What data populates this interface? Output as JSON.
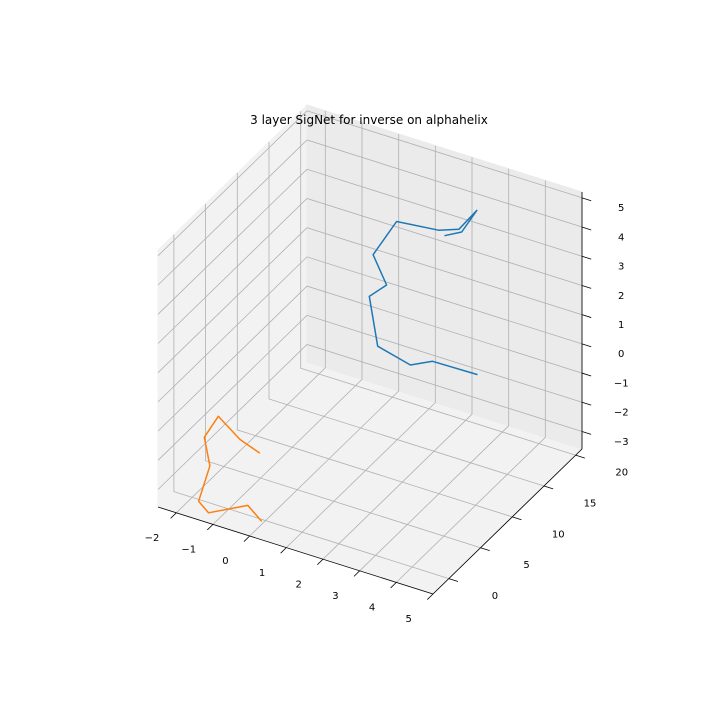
{
  "chart_data": {
    "type": "line",
    "projection": "3d",
    "title": "3 layer SigNet for inverse on alphahelix",
    "xlabel": "",
    "ylabel": "",
    "zlabel": "",
    "grid": true,
    "x_ticks": [
      "−2",
      "−1",
      "0",
      "1",
      "2",
      "3",
      "4",
      "5"
    ],
    "y_ticks": [
      "0",
      "5",
      "10",
      "15",
      "20"
    ],
    "z_ticks": [
      "−3",
      "−2",
      "−1",
      "0",
      "1",
      "2",
      "3",
      "4",
      "5"
    ],
    "xlim": [
      -2.5,
      5.0
    ],
    "ylim": [
      -2.5,
      21.0
    ],
    "zlim": [
      -3.6,
      5.2
    ],
    "series": [
      {
        "color": "#1f77b4",
        "points": [
          [
            2.6,
            13.2,
            4.4
          ],
          [
            3.0,
            13.6,
            4.6
          ],
          [
            3.1,
            15.4,
            5.0
          ],
          [
            2.7,
            14.9,
            4.3
          ],
          [
            2.3,
            14.0,
            4.3
          ],
          [
            1.5,
            12.0,
            4.7
          ],
          [
            1.1,
            10.6,
            3.7
          ],
          [
            1.4,
            11.0,
            2.7
          ],
          [
            1.1,
            10.0,
            2.4
          ],
          [
            1.4,
            9.6,
            0.9
          ],
          [
            2.1,
            10.7,
            0.3
          ],
          [
            2.6,
            11.3,
            0.5
          ],
          [
            3.5,
            13.2,
            0.0
          ]
        ]
      },
      {
        "color": "#ff7f0e",
        "points": [
          [
            0.0,
            -0.9,
            -1.1
          ],
          [
            -0.7,
            0.0,
            -1.1
          ],
          [
            -1.2,
            -0.5,
            -0.4
          ],
          [
            -1.6,
            -0.4,
            -1.3
          ],
          [
            -1.5,
            -0.1,
            -2.3
          ],
          [
            -1.6,
            -1.3,
            -3.3
          ],
          [
            -1.4,
            -0.9,
            -3.7
          ],
          [
            -0.5,
            0.1,
            -3.3
          ],
          [
            0.0,
            -0.6,
            -3.5
          ]
        ]
      }
    ]
  }
}
